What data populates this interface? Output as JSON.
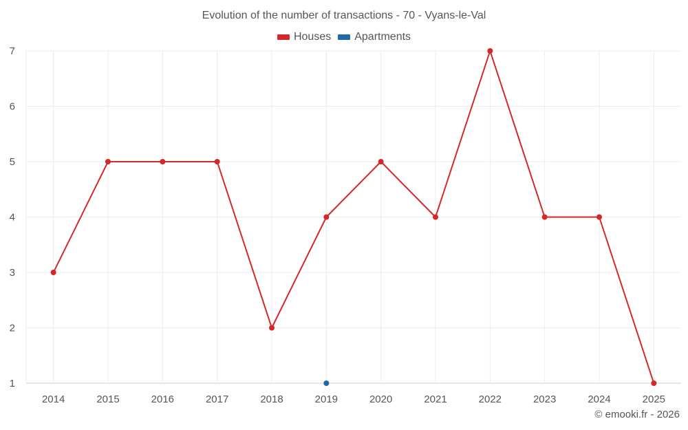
{
  "chart_data": {
    "type": "line",
    "title": "Evolution of the number of transactions - 70 - Vyans-le-Val",
    "x": [
      "2014",
      "2015",
      "2016",
      "2017",
      "2018",
      "2019",
      "2020",
      "2021",
      "2022",
      "2023",
      "2024",
      "2025"
    ],
    "ylim": [
      1,
      7
    ],
    "yticks": [
      1,
      2,
      3,
      4,
      5,
      6,
      7
    ],
    "grid": true,
    "legend_position": "top-center",
    "series": [
      {
        "name": "Houses",
        "color": "#d62728",
        "values": [
          3,
          5,
          5,
          5,
          2,
          4,
          5,
          4,
          7,
          4,
          4,
          1
        ]
      },
      {
        "name": "Apartments",
        "color": "#1f6aa5",
        "values": [
          null,
          null,
          null,
          null,
          null,
          1,
          null,
          null,
          null,
          null,
          null,
          null
        ]
      }
    ]
  },
  "credit": "© emooki.fr - 2026"
}
